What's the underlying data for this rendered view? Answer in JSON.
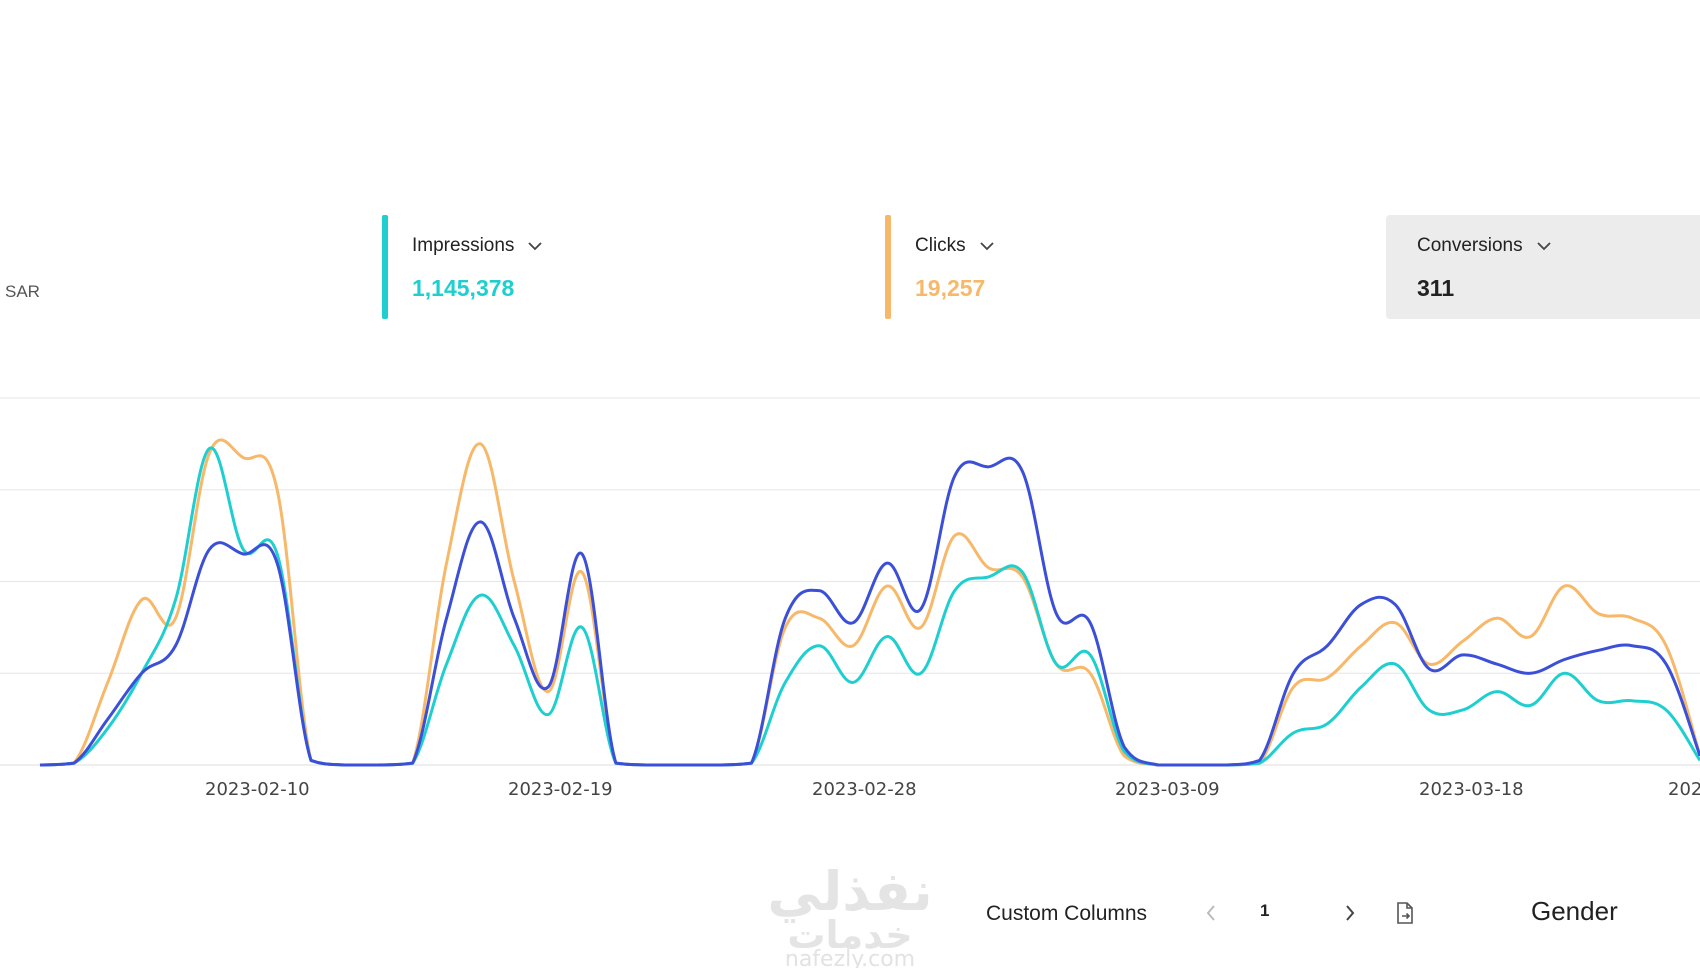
{
  "currency": "SAR",
  "metrics": {
    "impressions": {
      "label": "Impressions",
      "value": "1,145,378",
      "color": "#1fcfcf"
    },
    "clicks": {
      "label": "Clicks",
      "value": "19,257",
      "color": "#f8b86a"
    },
    "conversions": {
      "label": "Conversions",
      "value": "311",
      "color": "#222222"
    }
  },
  "icons": {
    "dropdown": "chevron-down-icon",
    "prev": "chevron-left-icon",
    "next": "chevron-right-icon",
    "export": "export-file-icon"
  },
  "toolbar": {
    "custom_columns": "Custom Columns",
    "page": "1",
    "gender": "Gender"
  },
  "watermark": {
    "text_top": "نفذلي",
    "text_mid": "خدمات",
    "text_url": "nafezly.com"
  },
  "chart_data": {
    "type": "line",
    "x_tick_labels": [
      "2023-02-10",
      "2023-02-19",
      "2023-02-28",
      "2023-03-09",
      "2023-03-18",
      "202"
    ],
    "ylim": [
      0,
      4
    ],
    "grid": true,
    "series": [
      {
        "name": "Impressions",
        "color": "#1fcfcf",
        "points": [
          [
            0,
            0.0
          ],
          [
            1,
            0.02
          ],
          [
            2,
            0.4
          ],
          [
            3,
            1.0
          ],
          [
            4,
            1.8
          ],
          [
            5,
            3.45
          ],
          [
            6,
            2.35
          ],
          [
            7,
            2.3
          ],
          [
            8,
            0.05
          ],
          [
            9,
            0.0
          ],
          [
            10,
            0.0
          ],
          [
            11,
            0.02
          ],
          [
            12,
            1.1
          ],
          [
            13,
            1.85
          ],
          [
            14,
            1.3
          ],
          [
            15,
            0.55
          ],
          [
            16,
            1.5
          ],
          [
            17,
            0.02
          ],
          [
            18,
            0.0
          ],
          [
            19,
            0.0
          ],
          [
            20,
            0.0
          ],
          [
            21,
            0.02
          ],
          [
            22,
            0.9
          ],
          [
            23,
            1.3
          ],
          [
            24,
            0.9
          ],
          [
            25,
            1.4
          ],
          [
            26,
            1.0
          ],
          [
            27,
            1.9
          ],
          [
            28,
            2.05
          ],
          [
            29,
            2.1
          ],
          [
            30,
            1.1
          ],
          [
            31,
            1.2
          ],
          [
            32,
            0.15
          ],
          [
            33,
            0.0
          ],
          [
            34,
            0.0
          ],
          [
            35,
            0.0
          ],
          [
            36,
            0.02
          ],
          [
            37,
            0.35
          ],
          [
            38,
            0.45
          ],
          [
            39,
            0.85
          ],
          [
            40,
            1.1
          ],
          [
            41,
            0.6
          ],
          [
            42,
            0.6
          ],
          [
            43,
            0.8
          ],
          [
            44,
            0.65
          ],
          [
            45,
            1.0
          ],
          [
            46,
            0.7
          ],
          [
            47,
            0.7
          ],
          [
            48,
            0.6
          ],
          [
            49,
            0.05
          ]
        ]
      },
      {
        "name": "Clicks",
        "color": "#f8b86a",
        "points": [
          [
            0,
            0.0
          ],
          [
            1,
            0.02
          ],
          [
            2,
            0.9
          ],
          [
            3,
            1.8
          ],
          [
            4,
            1.6
          ],
          [
            5,
            3.4
          ],
          [
            6,
            3.35
          ],
          [
            7,
            3.0
          ],
          [
            8,
            0.05
          ],
          [
            9,
            0.0
          ],
          [
            10,
            0.0
          ],
          [
            11,
            0.02
          ],
          [
            12,
            2.2
          ],
          [
            13,
            3.5
          ],
          [
            14,
            2.0
          ],
          [
            15,
            0.8
          ],
          [
            16,
            2.1
          ],
          [
            17,
            0.02
          ],
          [
            18,
            0.0
          ],
          [
            19,
            0.0
          ],
          [
            20,
            0.0
          ],
          [
            21,
            0.02
          ],
          [
            22,
            1.5
          ],
          [
            23,
            1.6
          ],
          [
            24,
            1.3
          ],
          [
            25,
            1.95
          ],
          [
            26,
            1.5
          ],
          [
            27,
            2.5
          ],
          [
            28,
            2.15
          ],
          [
            29,
            2.05
          ],
          [
            30,
            1.1
          ],
          [
            31,
            1.0
          ],
          [
            32,
            0.1
          ],
          [
            33,
            0.0
          ],
          [
            34,
            0.0
          ],
          [
            35,
            0.0
          ],
          [
            36,
            0.02
          ],
          [
            37,
            0.85
          ],
          [
            38,
            0.95
          ],
          [
            39,
            1.3
          ],
          [
            40,
            1.55
          ],
          [
            41,
            1.1
          ],
          [
            42,
            1.35
          ],
          [
            43,
            1.6
          ],
          [
            44,
            1.4
          ],
          [
            45,
            1.95
          ],
          [
            46,
            1.65
          ],
          [
            47,
            1.6
          ],
          [
            48,
            1.3
          ],
          [
            49,
            0.1
          ]
        ]
      },
      {
        "name": "Conversions",
        "color": "#3b4fd8",
        "points": [
          [
            0,
            0.0
          ],
          [
            1,
            0.02
          ],
          [
            2,
            0.5
          ],
          [
            3,
            1.0
          ],
          [
            4,
            1.3
          ],
          [
            5,
            2.35
          ],
          [
            6,
            2.3
          ],
          [
            7,
            2.2
          ],
          [
            8,
            0.05
          ],
          [
            9,
            0.0
          ],
          [
            10,
            0.0
          ],
          [
            11,
            0.02
          ],
          [
            12,
            1.6
          ],
          [
            13,
            2.65
          ],
          [
            14,
            1.6
          ],
          [
            15,
            0.85
          ],
          [
            16,
            2.3
          ],
          [
            17,
            0.02
          ],
          [
            18,
            0.0
          ],
          [
            19,
            0.0
          ],
          [
            20,
            0.0
          ],
          [
            21,
            0.02
          ],
          [
            22,
            1.6
          ],
          [
            23,
            1.9
          ],
          [
            24,
            1.55
          ],
          [
            25,
            2.2
          ],
          [
            26,
            1.7
          ],
          [
            27,
            3.15
          ],
          [
            28,
            3.25
          ],
          [
            29,
            3.2
          ],
          [
            30,
            1.65
          ],
          [
            31,
            1.55
          ],
          [
            32,
            0.2
          ],
          [
            33,
            0.0
          ],
          [
            34,
            0.0
          ],
          [
            35,
            0.0
          ],
          [
            36,
            0.05
          ],
          [
            37,
            1.0
          ],
          [
            38,
            1.3
          ],
          [
            39,
            1.75
          ],
          [
            40,
            1.75
          ],
          [
            41,
            1.05
          ],
          [
            42,
            1.2
          ],
          [
            43,
            1.1
          ],
          [
            44,
            1.0
          ],
          [
            45,
            1.15
          ],
          [
            46,
            1.25
          ],
          [
            47,
            1.3
          ],
          [
            48,
            1.1
          ],
          [
            49,
            0.1
          ]
        ]
      }
    ]
  }
}
